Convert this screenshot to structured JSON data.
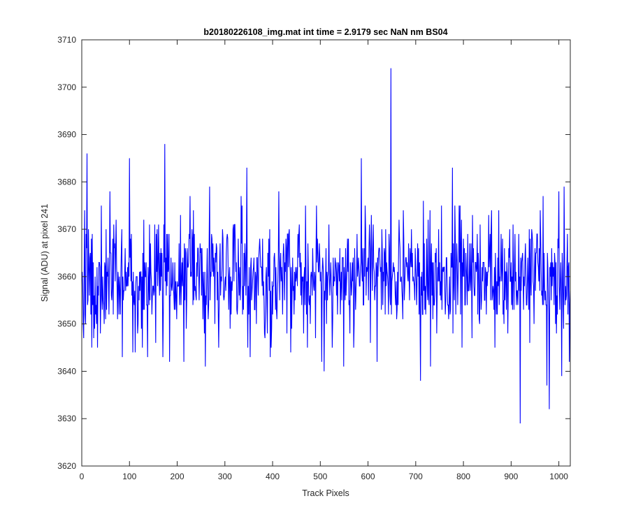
{
  "chart_data": {
    "type": "line",
    "title": "b20180226108_img.mat int time = 2.9179 sec  NaN nm BS04",
    "xlabel": "Track Pixels",
    "ylabel": "Signal (ADU) at pixel 241",
    "xlim": [
      0,
      1024
    ],
    "ylim": [
      3620,
      3710
    ],
    "xticks": [
      "0",
      "100",
      "200",
      "300",
      "400",
      "500",
      "600",
      "700",
      "800",
      "900",
      "1000"
    ],
    "yticks": [
      "3620",
      "3630",
      "3640",
      "3650",
      "3660",
      "3670",
      "3680",
      "3690",
      "3700",
      "3710"
    ],
    "grid": false,
    "line_color": "#0000ff",
    "series": [
      {
        "x_start": 1,
        "x_step": 1,
        "count": 1024,
        "baseline": 3660,
        "noise_std": 6,
        "highlighted_points": [
          {
            "x": 3,
            "y": 3650
          },
          {
            "x": 6,
            "y": 3674
          },
          {
            "x": 8,
            "y": 3650
          },
          {
            "x": 11,
            "y": 3686
          },
          {
            "x": 13,
            "y": 3655
          },
          {
            "x": 21,
            "y": 3645
          },
          {
            "x": 33,
            "y": 3645
          },
          {
            "x": 41,
            "y": 3675
          },
          {
            "x": 47,
            "y": 3650
          },
          {
            "x": 59,
            "y": 3678
          },
          {
            "x": 85,
            "y": 3643
          },
          {
            "x": 100,
            "y": 3685
          },
          {
            "x": 112,
            "y": 3644
          },
          {
            "x": 130,
            "y": 3672
          },
          {
            "x": 138,
            "y": 3643
          },
          {
            "x": 155,
            "y": 3646
          },
          {
            "x": 170,
            "y": 3643
          },
          {
            "x": 174,
            "y": 3688
          },
          {
            "x": 184,
            "y": 3642
          },
          {
            "x": 214,
            "y": 3642
          },
          {
            "x": 227,
            "y": 3677
          },
          {
            "x": 259,
            "y": 3641
          },
          {
            "x": 268,
            "y": 3679
          },
          {
            "x": 287,
            "y": 3645
          },
          {
            "x": 334,
            "y": 3677
          },
          {
            "x": 346,
            "y": 3683
          },
          {
            "x": 353,
            "y": 3643
          },
          {
            "x": 395,
            "y": 3643
          },
          {
            "x": 413,
            "y": 3678
          },
          {
            "x": 438,
            "y": 3644
          },
          {
            "x": 473,
            "y": 3645
          },
          {
            "x": 492,
            "y": 3675
          },
          {
            "x": 503,
            "y": 3642
          },
          {
            "x": 508,
            "y": 3640
          },
          {
            "x": 549,
            "y": 3641
          },
          {
            "x": 586,
            "y": 3685
          },
          {
            "x": 619,
            "y": 3642
          },
          {
            "x": 648,
            "y": 3704
          },
          {
            "x": 651,
            "y": 3660
          },
          {
            "x": 710,
            "y": 3638
          },
          {
            "x": 716,
            "y": 3676
          },
          {
            "x": 731,
            "y": 3641
          },
          {
            "x": 777,
            "y": 3683
          },
          {
            "x": 797,
            "y": 3645
          },
          {
            "x": 866,
            "y": 3645
          },
          {
            "x": 904,
            "y": 3671
          },
          {
            "x": 919,
            "y": 3629
          },
          {
            "x": 925,
            "y": 3660
          },
          {
            "x": 967,
            "y": 3677
          },
          {
            "x": 975,
            "y": 3637
          },
          {
            "x": 980,
            "y": 3632
          },
          {
            "x": 1000,
            "y": 3678
          },
          {
            "x": 1006,
            "y": 3639
          },
          {
            "x": 1011,
            "y": 3679
          },
          {
            "x": 1018,
            "y": 3669
          },
          {
            "x": 1022,
            "y": 3642
          }
        ]
      }
    ]
  }
}
